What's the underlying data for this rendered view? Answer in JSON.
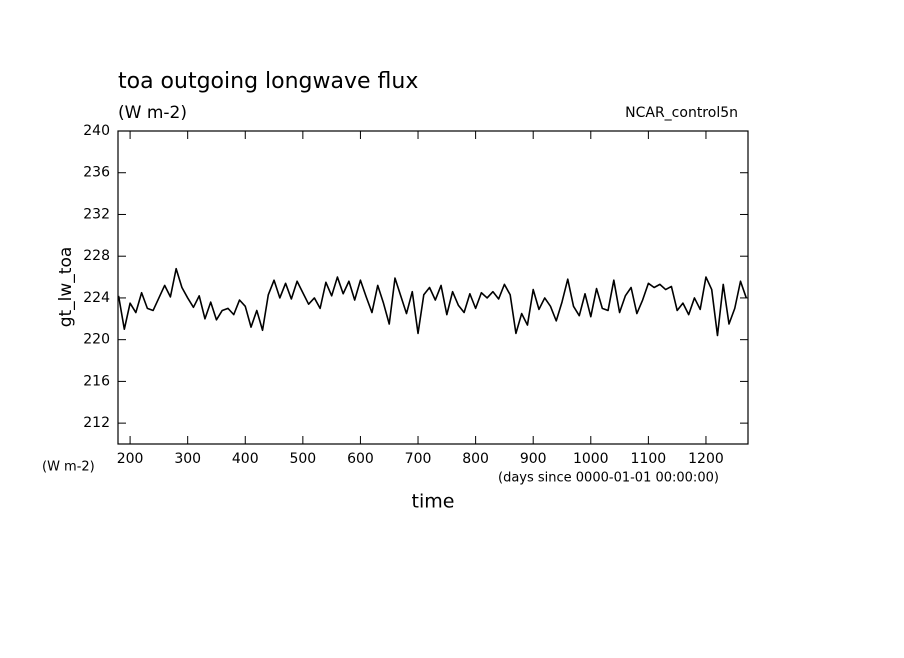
{
  "chart_data": {
    "type": "line",
    "title": "toa outgoing longwave flux",
    "subtitle": "(W m-2)",
    "dataset_label": "NCAR_control5n",
    "y_label": "gt_lw_toa",
    "x_label": "time",
    "y_units": "(W m-2)",
    "x_units": "(days since 0000-01-01 00:00:00)",
    "color": "#000000",
    "xlim": [
      179,
      1273
    ],
    "ylim": [
      210,
      240
    ],
    "xticks": [
      200,
      300,
      400,
      500,
      600,
      700,
      800,
      900,
      1000,
      1100,
      1200
    ],
    "yticks": [
      212,
      216,
      220,
      224,
      228,
      232,
      236,
      240
    ],
    "grid": false,
    "x": [
      180,
      190,
      200,
      210,
      220,
      230,
      240,
      250,
      260,
      270,
      280,
      290,
      300,
      310,
      320,
      330,
      340,
      350,
      360,
      370,
      380,
      390,
      400,
      410,
      420,
      430,
      440,
      450,
      460,
      470,
      480,
      490,
      500,
      510,
      520,
      530,
      540,
      550,
      560,
      570,
      580,
      590,
      600,
      610,
      620,
      630,
      640,
      650,
      660,
      670,
      680,
      690,
      700,
      710,
      720,
      730,
      740,
      750,
      760,
      770,
      780,
      790,
      800,
      810,
      820,
      830,
      840,
      850,
      860,
      870,
      880,
      890,
      900,
      910,
      920,
      930,
      940,
      950,
      960,
      970,
      980,
      990,
      1000,
      1010,
      1020,
      1030,
      1040,
      1050,
      1060,
      1070,
      1080,
      1090,
      1100,
      1110,
      1120,
      1130,
      1140,
      1150,
      1160,
      1170,
      1180,
      1190,
      1200,
      1210,
      1220,
      1230,
      1240,
      1250,
      1260,
      1270
    ],
    "values": [
      224.2,
      221.0,
      223.5,
      222.6,
      224.5,
      223.0,
      222.8,
      224.0,
      225.2,
      224.1,
      226.8,
      225.0,
      224.0,
      223.1,
      224.2,
      222.0,
      223.6,
      221.9,
      222.8,
      223.0,
      222.4,
      223.8,
      223.2,
      221.2,
      222.8,
      220.9,
      224.3,
      225.7,
      224.0,
      225.4,
      223.9,
      225.6,
      224.5,
      223.4,
      224.0,
      223.0,
      225.5,
      224.2,
      226.0,
      224.4,
      225.6,
      223.8,
      225.7,
      224.1,
      222.6,
      225.2,
      223.5,
      221.5,
      225.9,
      224.2,
      222.5,
      224.6,
      220.6,
      224.3,
      225.0,
      223.8,
      225.2,
      222.4,
      224.6,
      223.3,
      222.6,
      224.4,
      223.0,
      224.5,
      224.0,
      224.6,
      223.9,
      225.3,
      224.3,
      220.6,
      222.5,
      221.4,
      224.8,
      222.9,
      224.0,
      223.2,
      221.8,
      223.6,
      225.8,
      223.2,
      222.3,
      224.4,
      222.2,
      224.9,
      223.0,
      222.8,
      225.7,
      222.6,
      224.2,
      225.0,
      222.5,
      223.8,
      225.4,
      225.0,
      225.3,
      224.8,
      225.1,
      222.8,
      223.5,
      222.4,
      224.0,
      222.9,
      226.0,
      224.8,
      220.4,
      225.3,
      221.5,
      223.0,
      225.6,
      224.0
    ]
  }
}
